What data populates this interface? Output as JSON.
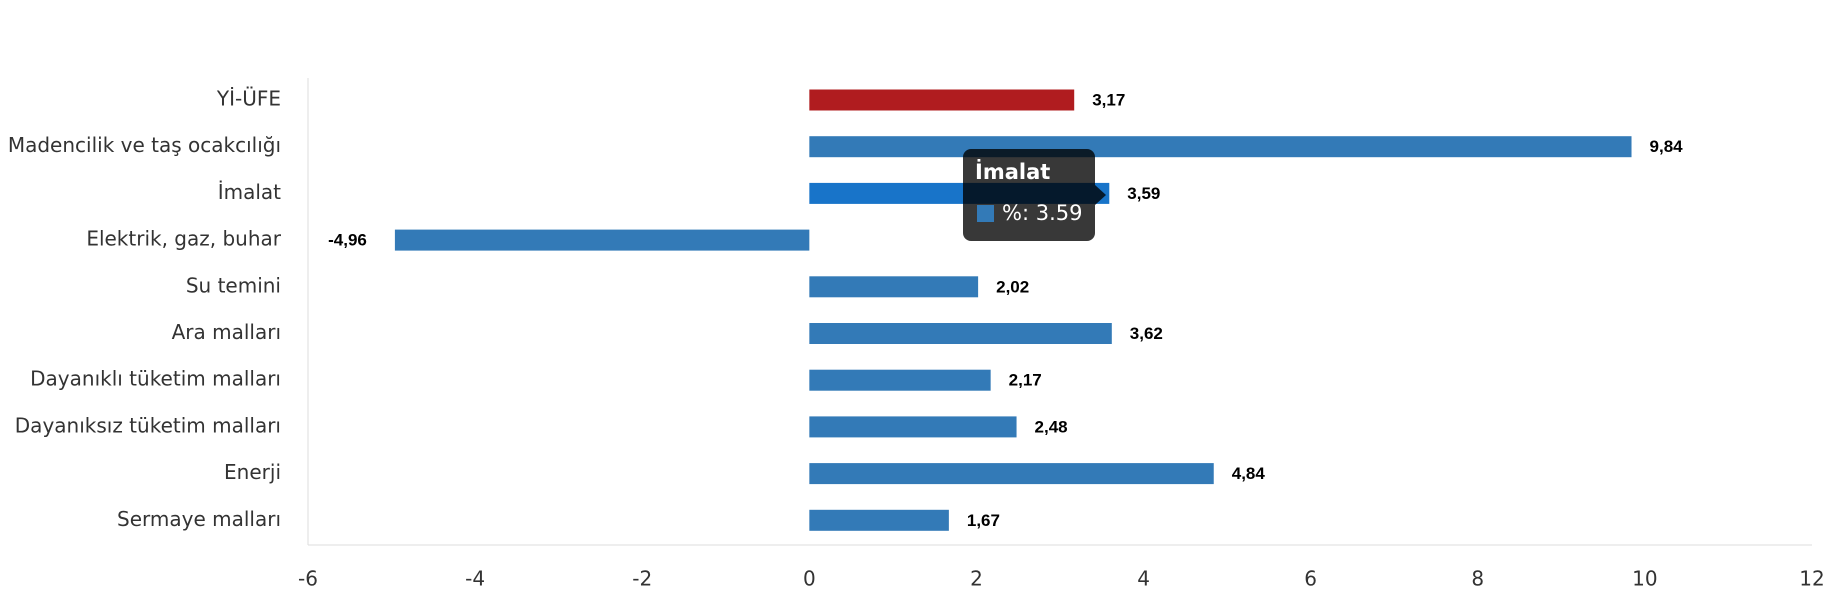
{
  "chart_data": {
    "type": "bar",
    "orientation": "horizontal",
    "categories": [
      "Yİ-ÜFE",
      "Madencilik ve taş ocakcılığı",
      "İmalat",
      "Elektrik, gaz, buhar",
      "Su temini",
      "Ara malları",
      "Dayanıklı tüketim malları",
      "Dayanıksız tüketim malları",
      "Enerji",
      "Sermaye malları"
    ],
    "values": [
      3.17,
      9.84,
      3.59,
      -4.96,
      2.02,
      3.62,
      2.17,
      2.48,
      4.84,
      1.67
    ],
    "value_labels": [
      "3,17",
      "9,84",
      "3,59",
      "-4,96",
      "2,02",
      "3,62",
      "2,17",
      "2,48",
      "4,84",
      "1,67"
    ],
    "colors": [
      "#b01c1f",
      "#337ab7",
      "#1874c9",
      "#337ab7",
      "#337ab7",
      "#337ab7",
      "#337ab7",
      "#337ab7",
      "#337ab7",
      "#337ab7"
    ],
    "xlim": [
      -6,
      12
    ],
    "xticks": [
      -6,
      -4,
      -2,
      0,
      2,
      4,
      6,
      8,
      10,
      12
    ],
    "tooltip": {
      "title": "İmalat",
      "label": "%: 3.59"
    }
  }
}
